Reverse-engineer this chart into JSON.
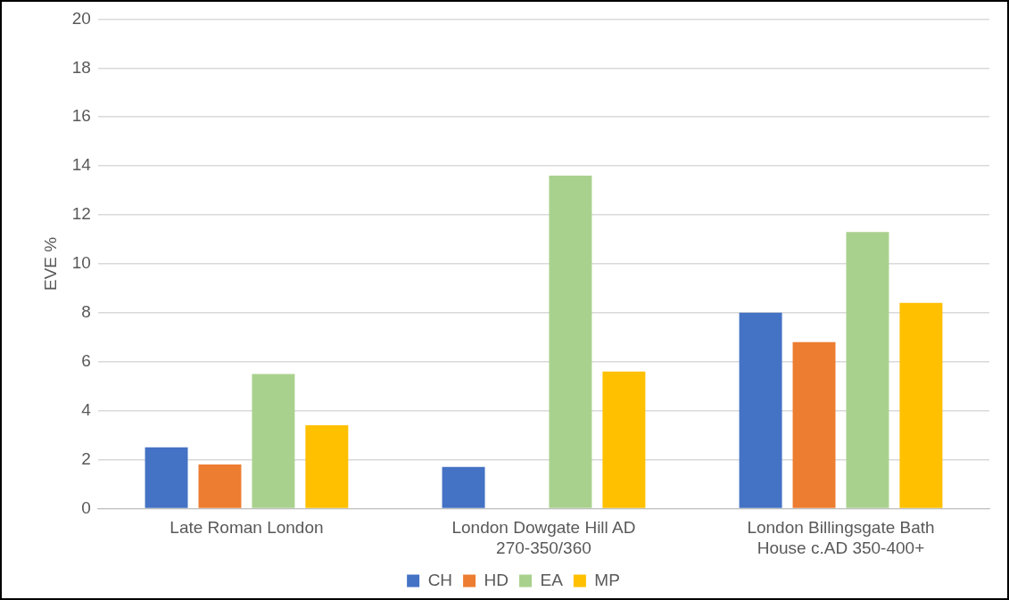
{
  "chart_data": {
    "type": "bar",
    "ylabel": "EVE %",
    "categories": [
      "Late Roman London",
      "London Dowgate Hill AD 270-350/360",
      "London Billingsgate Bath House c.AD 350-400+"
    ],
    "series": [
      {
        "name": "CH",
        "color": "#4472c4",
        "values": [
          2.5,
          1.7,
          8.0
        ]
      },
      {
        "name": "HD",
        "color": "#ed7d31",
        "values": [
          1.8,
          null,
          6.8
        ]
      },
      {
        "name": "EA",
        "color": "#a9d18e",
        "values": [
          5.5,
          13.6,
          11.3
        ]
      },
      {
        "name": "MP",
        "color": "#ffc000",
        "values": [
          3.4,
          5.6,
          8.4
        ]
      }
    ],
    "ylim": [
      0,
      20
    ],
    "yticks": [
      0,
      2,
      4,
      6,
      8,
      10,
      12,
      14,
      16,
      18,
      20
    ],
    "grid": "y",
    "legend": "bottom"
  }
}
